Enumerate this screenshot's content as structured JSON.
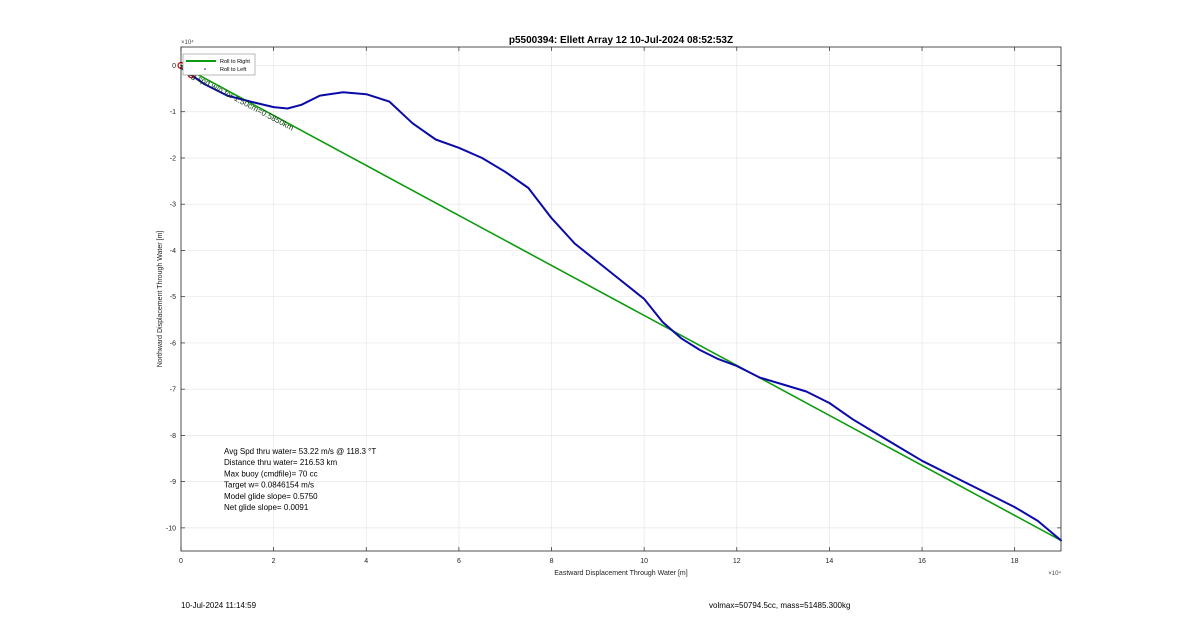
{
  "chart_data": {
    "type": "line",
    "title": "p5500394: Ellett Array 12 10-Jul-2024 08:52:53Z",
    "xlabel": "Eastward Displacement Through Water [m]",
    "ylabel": "Northward Displacement Through Water [m]",
    "x_exponent_label": "×10⁴",
    "y_exponent_label": "×10⁴",
    "xlim": [
      0,
      19
    ],
    "ylim": [
      -10.5,
      0.4
    ],
    "x_ticks": [
      0,
      2,
      4,
      6,
      8,
      10,
      12,
      14,
      16,
      18
    ],
    "y_ticks": [
      0,
      -1,
      -2,
      -3,
      -4,
      -5,
      -6,
      -7,
      -8,
      -9,
      -10
    ],
    "grid": true,
    "legend": {
      "position": "top-left",
      "entries": [
        "Roll to Right",
        "Roll to Left"
      ]
    },
    "series": [
      {
        "name": "Roll to Right",
        "color": "#0f9b0f",
        "x": [
          0,
          19
        ],
        "y": [
          0,
          -10.27
        ]
      },
      {
        "color": "#0a0aa8",
        "x": [
          0,
          0.5,
          1.0,
          1.5,
          2.0,
          2.3,
          2.6,
          3.0,
          3.5,
          4.0,
          4.5,
          5.0,
          5.5,
          6.0,
          6.5,
          7.0,
          7.5,
          8.0,
          8.5,
          9.0,
          9.5,
          10.0,
          10.4,
          10.8,
          11.2,
          11.6,
          12.0,
          12.5,
          13.0,
          13.5,
          14.0,
          14.5,
          15.0,
          15.5,
          16.0,
          16.5,
          17.0,
          17.5,
          18.0,
          18.5,
          19.0
        ],
        "y": [
          -0.05,
          -0.4,
          -0.65,
          -0.78,
          -0.9,
          -0.93,
          -0.85,
          -0.65,
          -0.58,
          -0.62,
          -0.78,
          -1.25,
          -1.6,
          -1.78,
          -2.0,
          -2.3,
          -2.65,
          -3.3,
          -3.85,
          -4.25,
          -4.65,
          -5.05,
          -5.55,
          -5.9,
          -6.15,
          -6.35,
          -6.5,
          -6.75,
          -6.9,
          -7.05,
          -7.3,
          -7.65,
          -7.95,
          -8.25,
          -8.55,
          -8.8,
          -9.05,
          -9.3,
          -9.55,
          -9.85,
          -10.27
        ]
      }
    ],
    "markers": [
      {
        "label": "surface-point",
        "x": 0,
        "y": 0,
        "color": "#cc0000"
      },
      {
        "label": "target",
        "x": 0.22,
        "y": -0.2,
        "color": "#cc0000"
      }
    ],
    "annotations": {
      "rotated_label": "Avg spd w/o for 1.50cm=0.5850km",
      "stats": [
        "Avg Spd thru water= 53.22 m/s @ 118.3 °T",
        "Distance thru water= 216.53 km",
        "Max buoy (cmdfile)= 70 cc",
        "Target w= 0.0846154 m/s",
        "Model glide slope= 0.5750",
        "Net glide slope= 0.0091"
      ]
    }
  },
  "footer": {
    "left": "10-Jul-2024 11:14:59",
    "right": "volmax=50794.5cc, mass=51485.300kg"
  }
}
